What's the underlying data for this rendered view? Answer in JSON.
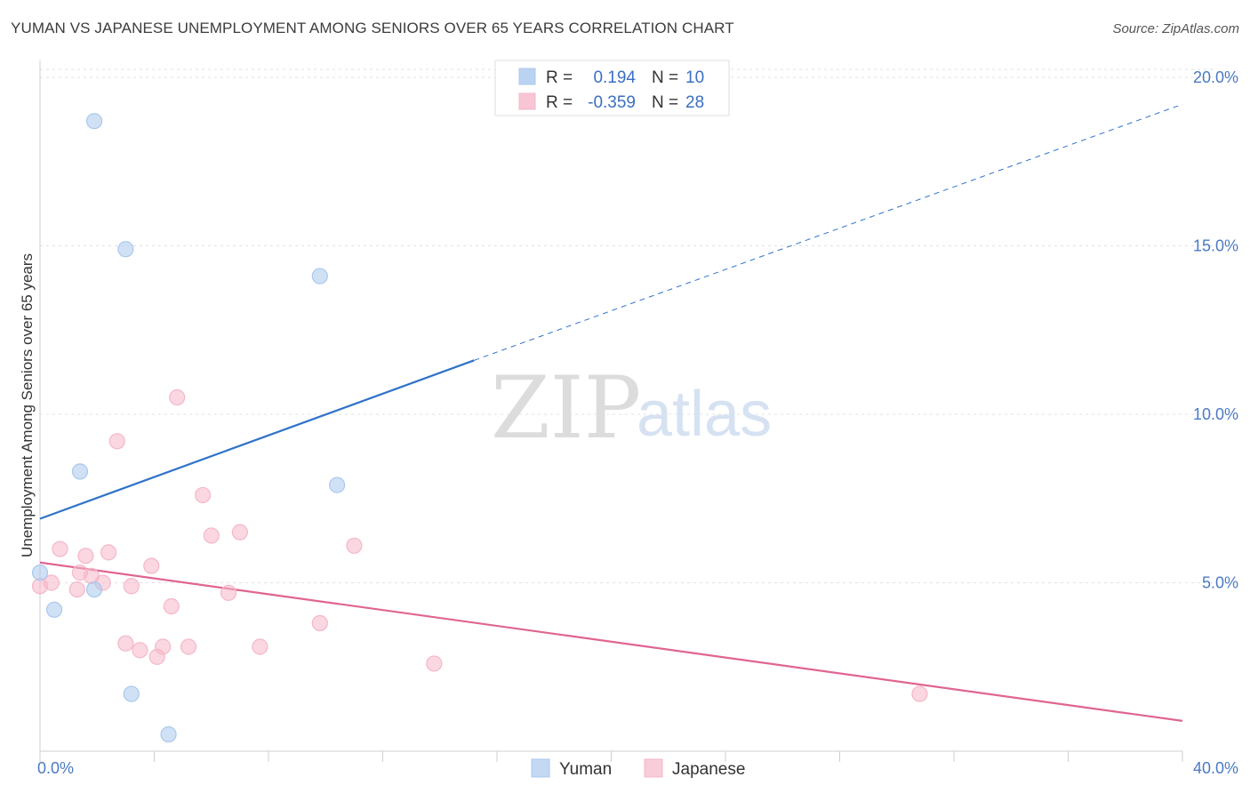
{
  "title": "YUMAN VS JAPANESE UNEMPLOYMENT AMONG SENIORS OVER 65 YEARS CORRELATION CHART",
  "source": "Source: ZipAtlas.com",
  "watermark": {
    "zip": "ZIP",
    "atlas": "atlas"
  },
  "chart_data": {
    "type": "scatter",
    "title": "YUMAN VS JAPANESE UNEMPLOYMENT AMONG SENIORS OVER 65 YEARS CORRELATION CHART",
    "xlabel": "",
    "ylabel": "Unemployment Among Seniors over 65 years",
    "xlim": [
      0,
      40
    ],
    "ylim": [
      0,
      20.5
    ],
    "x_tick_labels": [
      {
        "value": 0,
        "label": "0.0%"
      },
      {
        "value": 40,
        "label": "40.0%"
      }
    ],
    "y_tick_labels": [
      {
        "value": 5,
        "label": "5.0%"
      },
      {
        "value": 10,
        "label": "10.0%"
      },
      {
        "value": 15,
        "label": "15.0%"
      },
      {
        "value": 20,
        "label": "20.0%"
      }
    ],
    "grid": true,
    "legend_position": "top-center",
    "series": [
      {
        "name": "Yuman",
        "color": "#a9c8ee",
        "line_color": "#2f72c9",
        "R": "0.194",
        "N": "10",
        "points": [
          {
            "x": 0.0,
            "y": 5.3
          },
          {
            "x": 0.5,
            "y": 4.2
          },
          {
            "x": 1.9,
            "y": 18.7
          },
          {
            "x": 1.4,
            "y": 8.3
          },
          {
            "x": 1.9,
            "y": 4.8
          },
          {
            "x": 3.0,
            "y": 14.9
          },
          {
            "x": 3.2,
            "y": 1.7
          },
          {
            "x": 4.5,
            "y": 0.5
          },
          {
            "x": 9.8,
            "y": 14.1
          },
          {
            "x": 10.4,
            "y": 7.9
          }
        ],
        "trend": {
          "x0": 0,
          "y0": 6.9,
          "x1": 15.2,
          "y1": 11.6,
          "dashed_to_x": 40,
          "dashed_to_y": 19.2
        }
      },
      {
        "name": "Japanese",
        "color": "#f5b7c8",
        "line_color": "#e06492",
        "R": "-0.359",
        "N": "28",
        "points": [
          {
            "x": 0.0,
            "y": 4.9
          },
          {
            "x": 0.4,
            "y": 5.0
          },
          {
            "x": 0.7,
            "y": 6.0
          },
          {
            "x": 1.3,
            "y": 4.8
          },
          {
            "x": 1.6,
            "y": 5.8
          },
          {
            "x": 1.4,
            "y": 5.3
          },
          {
            "x": 1.8,
            "y": 5.2
          },
          {
            "x": 2.2,
            "y": 5.0
          },
          {
            "x": 2.4,
            "y": 5.9
          },
          {
            "x": 2.7,
            "y": 9.2
          },
          {
            "x": 3.0,
            "y": 3.2
          },
          {
            "x": 3.2,
            "y": 4.9
          },
          {
            "x": 3.5,
            "y": 3.0
          },
          {
            "x": 3.9,
            "y": 5.5
          },
          {
            "x": 4.1,
            "y": 2.8
          },
          {
            "x": 4.3,
            "y": 3.1
          },
          {
            "x": 4.6,
            "y": 4.3
          },
          {
            "x": 4.8,
            "y": 10.5
          },
          {
            "x": 5.2,
            "y": 3.1
          },
          {
            "x": 5.7,
            "y": 7.6
          },
          {
            "x": 6.0,
            "y": 6.4
          },
          {
            "x": 6.6,
            "y": 4.7
          },
          {
            "x": 7.0,
            "y": 6.5
          },
          {
            "x": 7.7,
            "y": 3.1
          },
          {
            "x": 9.8,
            "y": 3.8
          },
          {
            "x": 11.0,
            "y": 6.1
          },
          {
            "x": 13.8,
            "y": 2.6
          },
          {
            "x": 30.8,
            "y": 1.7
          }
        ],
        "trend": {
          "x0": 0,
          "y0": 5.6,
          "x1": 40,
          "y1": 0.9
        }
      }
    ]
  },
  "legend": {
    "r_label": "R =",
    "n_label": "N ="
  }
}
